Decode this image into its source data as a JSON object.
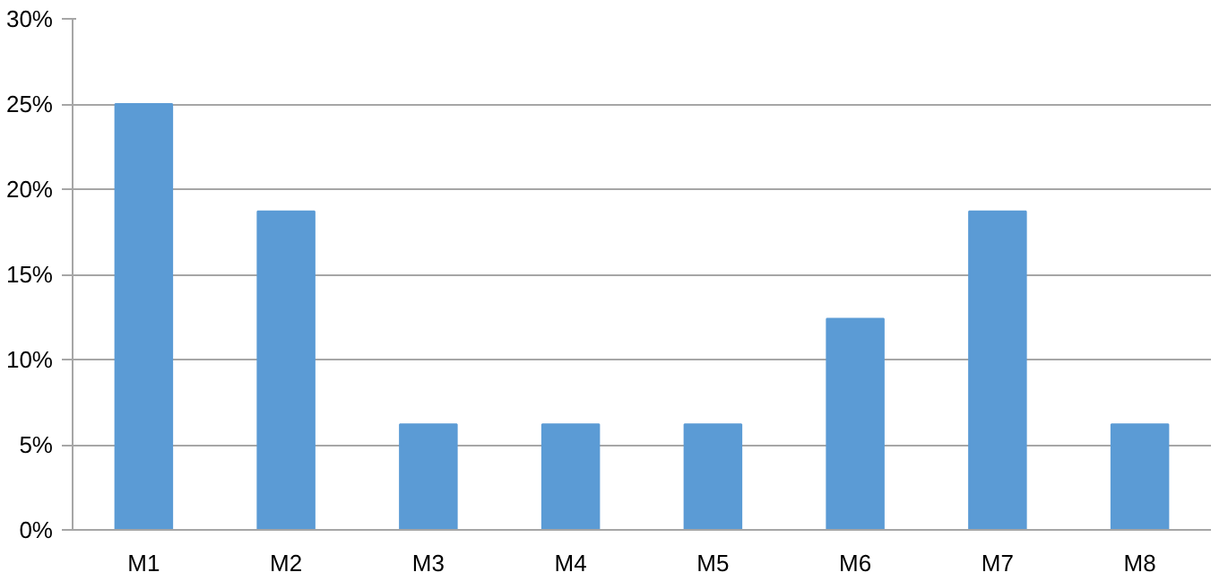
{
  "chart_data": {
    "type": "bar",
    "categories": [
      "M1",
      "M2",
      "M3",
      "M4",
      "M5",
      "M6",
      "M7",
      "M8"
    ],
    "values": [
      25,
      18.7,
      6.2,
      6.2,
      6.2,
      12.4,
      18.7,
      6.2
    ],
    "color": "#5b9bd5",
    "ylim": [
      0,
      30
    ],
    "yticks": [
      {
        "value": 0,
        "label": "0%"
      },
      {
        "value": 5,
        "label": "5%"
      },
      {
        "value": 10,
        "label": "10%"
      },
      {
        "value": 15,
        "label": "15%"
      },
      {
        "value": 20,
        "label": "20%"
      },
      {
        "value": 25,
        "label": "25%"
      },
      {
        "value": 30,
        "label": "30%"
      }
    ],
    "grid": "y"
  }
}
